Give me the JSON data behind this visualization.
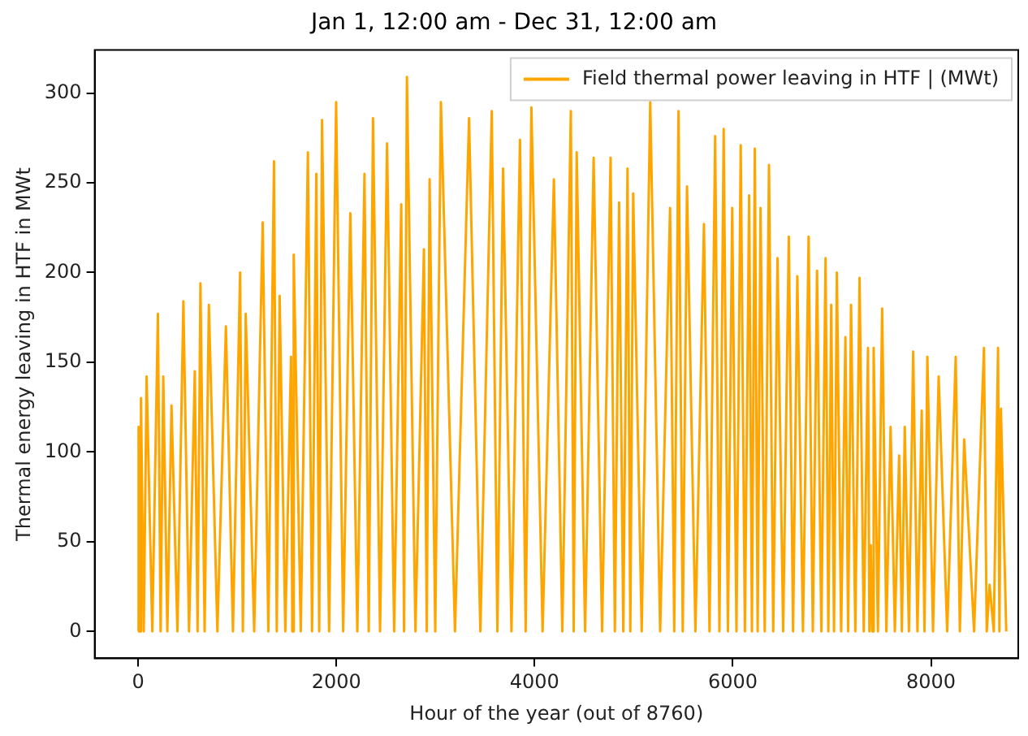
{
  "chart_data": {
    "type": "line",
    "title": "Jan 1, 12:00 am - Dec 31, 12:00 am",
    "xlabel": "Hour of the year (out of 8760)",
    "ylabel": "Thermal energy leaving in HTF in MWt",
    "xlim": [
      -438,
      8880
    ],
    "xticks": [
      0,
      2000,
      4000,
      6000,
      8000
    ],
    "ylim": [
      -15,
      324
    ],
    "yticks": [
      0,
      50,
      100,
      150,
      200,
      250,
      300
    ],
    "grid": false,
    "legend": "top right",
    "marker": "none",
    "line_style": "solid",
    "series": [
      {
        "name": "Field thermal power leaving in HTF | (MWt)",
        "color": "#ffa500",
        "x": [
          0,
          5,
          17,
          29,
          57,
          86,
          143,
          200,
          227,
          254,
          295,
          337,
          397,
          457,
          514,
          572,
          600,
          629,
          671,
          714,
          800,
          886,
          957,
          1029,
          1057,
          1086,
          1171,
          1257,
          1314,
          1371,
          1399,
          1428,
          1485,
          1543,
          1556,
          1570,
          1641,
          1713,
          1755,
          1798,
          1827,
          1856,
          1927,
          1998,
          2069,
          2141,
          2212,
          2284,
          2327,
          2370,
          2441,
          2512,
          2583,
          2655,
          2683,
          2712,
          2798,
          2884,
          2912,
          2941,
          2998,
          3055,
          3197,
          3339,
          3453,
          3568,
          3625,
          3682,
          3767,
          3853,
          3910,
          3968,
          4081,
          4195,
          4280,
          4366,
          4395,
          4425,
          4510,
          4596,
          4681,
          4767,
          4810,
          4853,
          4895,
          4938,
          4966,
          4995,
          5081,
          5167,
          5267,
          5367,
          5409,
          5452,
          5495,
          5538,
          5623,
          5709,
          5765,
          5822,
          5865,
          5908,
          5951,
          5994,
          6037,
          6080,
          6122,
          6165,
          6193,
          6222,
          6251,
          6280,
          6322,
          6365,
          6408,
          6451,
          6508,
          6565,
          6608,
          6651,
          6708,
          6765,
          6807,
          6850,
          6893,
          6936,
          6964,
          6993,
          7021,
          7050,
          7093,
          7136,
          7164,
          7193,
          7236,
          7279,
          7321,
          7364,
          7378,
          7392,
          7406,
          7421,
          7464,
          7507,
          7549,
          7592,
          7635,
          7678,
          7706,
          7735,
          7777,
          7820,
          7863,
          7906,
          7934,
          7963,
          8020,
          8077,
          8163,
          8249,
          8291,
          8334,
          8434,
          8534,
          8562,
          8591,
          8633,
          8676,
          8690,
          8705,
          8759
        ],
        "values": [
          0,
          114,
          0,
          130,
          0,
          142,
          0,
          177,
          0,
          142,
          0,
          126,
          0,
          184,
          0,
          145,
          0,
          194,
          0,
          182,
          0,
          170,
          0,
          200,
          0,
          177,
          0,
          228,
          0,
          262,
          0,
          187,
          0,
          153,
          0,
          210,
          0,
          267,
          0,
          255,
          0,
          285,
          0,
          295,
          0,
          233,
          0,
          255,
          0,
          286,
          0,
          272,
          0,
          238,
          0,
          309,
          0,
          213,
          0,
          252,
          0,
          295,
          0,
          286,
          0,
          290,
          0,
          258,
          0,
          274,
          0,
          292,
          0,
          252,
          0,
          290,
          0,
          267,
          0,
          264,
          0,
          264,
          0,
          239,
          0,
          258,
          0,
          244,
          0,
          295,
          0,
          236,
          0,
          290,
          0,
          248,
          0,
          227,
          0,
          276,
          0,
          280,
          0,
          236,
          0,
          271,
          0,
          243,
          0,
          269,
          0,
          236,
          0,
          260,
          0,
          208,
          0,
          220,
          0,
          198,
          0,
          220,
          0,
          201,
          0,
          208,
          0,
          182,
          0,
          200,
          0,
          164,
          0,
          182,
          0,
          197,
          0,
          158,
          0,
          48,
          0,
          158,
          0,
          180,
          0,
          114,
          0,
          98,
          0,
          114,
          0,
          156,
          0,
          123,
          0,
          153,
          0,
          142,
          0,
          153,
          0,
          107,
          0,
          158,
          0,
          26,
          0,
          158,
          0,
          124,
          0
        ]
      }
    ]
  }
}
